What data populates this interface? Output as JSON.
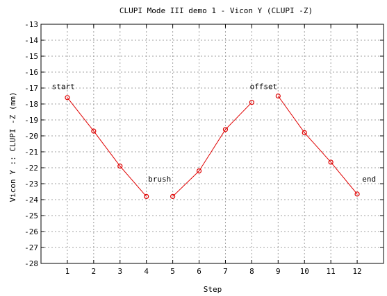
{
  "chart_data": {
    "type": "line",
    "title": "CLUPI Mode III demo 1 - Vicon Y (CLUPI -Z)",
    "xlabel": "Step",
    "ylabel": "Vicon Y :: CLUPI -Z (mm)",
    "xlim": [
      0,
      13
    ],
    "ylim": [
      -28,
      -13
    ],
    "xticks": [
      1,
      2,
      3,
      4,
      5,
      6,
      7,
      8,
      9,
      10,
      11,
      12
    ],
    "yticks": [
      -28,
      -27,
      -26,
      -25,
      -24,
      -23,
      -22,
      -21,
      -20,
      -19,
      -18,
      -17,
      -16,
      -15,
      -14,
      -13
    ],
    "grid": true,
    "color": "#e00000",
    "segments": [
      {
        "x": [
          1,
          2,
          3,
          4
        ],
        "y": [
          -17.6,
          -19.7,
          -21.9,
          -23.8
        ]
      },
      {
        "x": [
          5,
          6,
          7,
          8
        ],
        "y": [
          -23.8,
          -22.2,
          -19.6,
          -17.9
        ]
      },
      {
        "x": [
          9,
          10,
          11,
          12
        ],
        "y": [
          -17.5,
          -19.8,
          -21.65,
          -23.65
        ]
      }
    ],
    "annotations": [
      {
        "text": "start",
        "x": 0.85,
        "y": -16.9
      },
      {
        "text": "brush",
        "x": 4.5,
        "y": -22.7
      },
      {
        "text": "offset",
        "x": 8.45,
        "y": -16.9
      },
      {
        "text": "end",
        "x": 12.45,
        "y": -22.7
      }
    ]
  }
}
